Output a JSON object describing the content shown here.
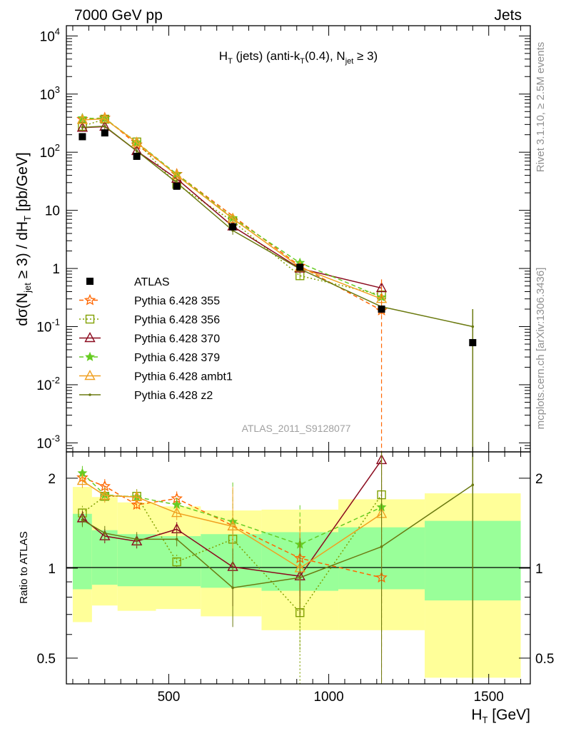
{
  "header": {
    "left": "7000 GeV pp",
    "right": "Jets",
    "title_main": "H",
    "title_sub1": "T",
    "title_mid": " (jets) (anti-k",
    "title_sub2": "T",
    "title_mid2": "(0.4), N",
    "title_sub3": "jet",
    "title_end": " ≥ 3)"
  },
  "side_labels": {
    "rivet": "Rivet 3.1.10, ≥ 2.5M events",
    "mcplots": "mcplots.cern.ch [arXiv:1306.3436]"
  },
  "watermark": "ATLAS_2011_S9128077",
  "y_label_top": {
    "a": "dσ(N",
    "a_sub": "jet",
    "b": " ≥ 3) / dH",
    "b_sub": "T",
    "c": " [pb/GeV]"
  },
  "y_label_bottom": "Ratio to ATLAS",
  "x_label": {
    "main": "H",
    "sub": "T",
    "rest": " [GeV]"
  },
  "top_tick_labels": [
    {
      "base": "10",
      "exp": "-3",
      "v": 0.001
    },
    {
      "base": "10",
      "exp": "-2",
      "v": 0.01
    },
    {
      "base": "10",
      "exp": "-1",
      "v": 0.1
    },
    {
      "base": "1",
      "exp": "",
      "v": 1
    },
    {
      "base": "10",
      "exp": "",
      "v": 10
    },
    {
      "base": "10",
      "exp": "2",
      "v": 100
    },
    {
      "base": "10",
      "exp": "3",
      "v": 1000
    },
    {
      "base": "10",
      "exp": "4",
      "v": 10000
    }
  ],
  "legend": [
    {
      "label": "ATLAS"
    },
    {
      "label": "Pythia 6.428 355"
    },
    {
      "label": "Pythia 6.428 356"
    },
    {
      "label": "Pythia 6.428 370"
    },
    {
      "label": "Pythia 6.428 379"
    },
    {
      "label": "Pythia 6.428 ambt1"
    },
    {
      "label": "Pythia 6.428 z2"
    }
  ],
  "colors": {
    "data": "#000000",
    "p355": "#ff6600",
    "p356": "#80a000",
    "p370": "#8b0a1e",
    "p379": "#66cc22",
    "ambt1": "#f0a020",
    "z2": "#6b7a10",
    "band_inner": "#99ff99",
    "band_outer": "#ffff99"
  },
  "chart_data": {
    "type": "line",
    "x_scale": "linear",
    "xlim": [
      180,
      1630
    ],
    "top_panel": {
      "y_scale": "log",
      "ylim": [
        0.0007,
        15000
      ],
      "ylabel": "dσ(N_jet ≥ 3) / dH_T [pb/GeV]"
    },
    "bottom_panel": {
      "y_scale": "log",
      "ylim": [
        0.41,
        2.45
      ],
      "ylabel": "Ratio to ATLAS",
      "yticks": [
        0.5,
        1,
        2
      ]
    },
    "xlabel": "H_T [GeV]",
    "xticks": [
      500,
      1000,
      1500
    ],
    "data": {
      "name": "ATLAS",
      "x": [
        230,
        300,
        400,
        525,
        700,
        910,
        1165,
        1450
      ],
      "y": [
        185,
        215,
        85,
        26,
        5.2,
        1.05,
        0.2,
        0.053
      ]
    },
    "bins": [
      [
        200,
        260
      ],
      [
        260,
        340
      ],
      [
        340,
        460
      ],
      [
        460,
        600
      ],
      [
        600,
        790
      ],
      [
        790,
        1030
      ],
      [
        1030,
        1300
      ],
      [
        1300,
        1600
      ]
    ],
    "band_inner": [
      [
        0.85,
        1.52
      ],
      [
        0.88,
        1.34
      ],
      [
        0.87,
        1.3
      ],
      [
        0.87,
        1.28
      ],
      [
        0.86,
        1.3
      ],
      [
        0.84,
        1.32
      ],
      [
        0.85,
        1.37
      ],
      [
        0.78,
        1.44
      ]
    ],
    "band_outer": [
      [
        0.66,
        1.87
      ],
      [
        0.75,
        1.73
      ],
      [
        0.72,
        1.66
      ],
      [
        0.73,
        1.61
      ],
      [
        0.69,
        1.56
      ],
      [
        0.62,
        1.57
      ],
      [
        0.62,
        1.7
      ],
      [
        0.43,
        1.78
      ]
    ],
    "series": [
      {
        "name": "Pythia 6.428 355",
        "style": "dashed",
        "marker": "star-open",
        "x": [
          230,
          300,
          400,
          525,
          910,
          1165
        ],
        "ratio": [
          2.01,
          1.88,
          1.63,
          1.71,
          1.08,
          0.93
        ],
        "y": [
          370,
          390,
          135,
          42,
          1.1,
          0.19
        ]
      },
      {
        "name": "Pythia 6.428 356",
        "style": "dotted",
        "marker": "square-open",
        "x": [
          230,
          300,
          400,
          525,
          700,
          910,
          1165
        ],
        "ratio": [
          1.53,
          1.74,
          1.74,
          1.05,
          1.25,
          0.71,
          1.76
        ],
        "y": [
          280,
          370,
          150,
          28,
          6.5,
          0.75,
          0.35
        ]
      },
      {
        "name": "Pythia 6.428 370",
        "style": "solid",
        "marker": "triangle-open",
        "x": [
          230,
          300,
          400,
          525,
          700,
          910,
          1165
        ],
        "ratio": [
          1.47,
          1.28,
          1.23,
          1.35,
          1.01,
          0.94,
          2.3
        ],
        "y": [
          265,
          275,
          105,
          35,
          5.3,
          1.0,
          0.46
        ]
      },
      {
        "name": "Pythia 6.428 379",
        "style": "dashed",
        "marker": "star-filled",
        "x": [
          230,
          300,
          400,
          525,
          700,
          910,
          1165
        ],
        "ratio": [
          2.08,
          1.76,
          1.73,
          1.63,
          1.43,
          1.2,
          1.6
        ],
        "y": [
          385,
          380,
          148,
          42,
          7.4,
          1.25,
          0.32
        ]
      },
      {
        "name": "Pythia 6.428 ambt1",
        "style": "solid",
        "marker": "triangle-open",
        "x": [
          230,
          300,
          400,
          525,
          700,
          910,
          1165
        ],
        "ratio": [
          1.96,
          1.75,
          1.73,
          1.53,
          1.38,
          1.0,
          1.52
        ],
        "y": [
          360,
          375,
          147,
          40,
          7.2,
          1.05,
          0.3
        ]
      },
      {
        "name": "Pythia 6.428 z2",
        "style": "solid",
        "marker": "dot",
        "x": [
          230,
          300,
          400,
          525,
          700,
          910,
          1165,
          1450
        ],
        "ratio": [
          1.45,
          1.31,
          1.25,
          1.25,
          0.86,
          0.93,
          1.18,
          1.9
        ],
        "y": [
          268,
          280,
          105,
          30,
          4.5,
          0.98,
          0.22,
          0.1
        ]
      }
    ]
  }
}
